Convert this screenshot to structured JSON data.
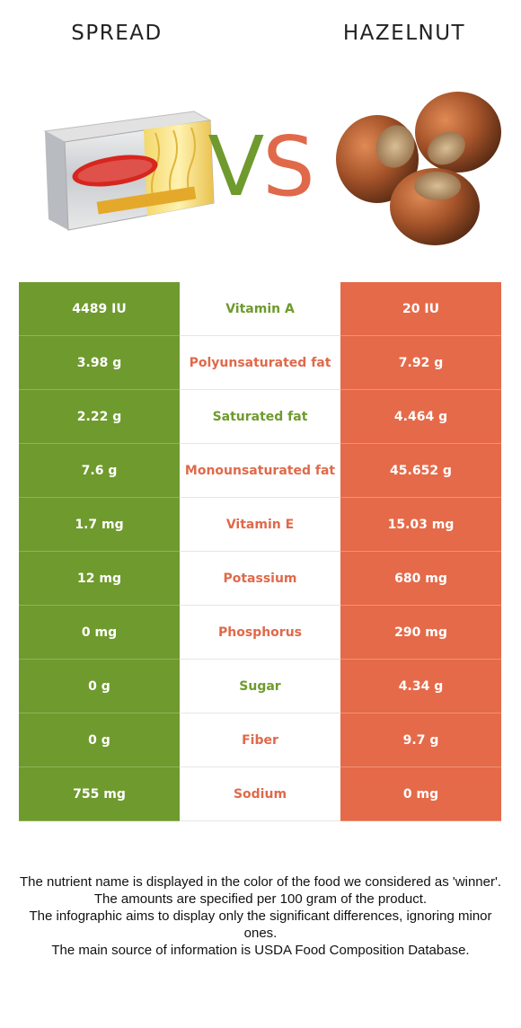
{
  "header": {
    "left_food": "SPREAD",
    "right_food": "HAZELNUT",
    "vs_v": "V",
    "vs_s": "S"
  },
  "colors": {
    "green": "#6f9a2e",
    "orange": "#e56a49"
  },
  "rows": [
    {
      "left": "4489 IU",
      "nutrient": "Vitamin A",
      "right": "20 IU",
      "winner": "left"
    },
    {
      "left": "3.98 g",
      "nutrient": "Polyunsaturated fat",
      "right": "7.92 g",
      "winner": "right"
    },
    {
      "left": "2.22 g",
      "nutrient": "Saturated fat",
      "right": "4.464 g",
      "winner": "left"
    },
    {
      "left": "7.6 g",
      "nutrient": "Monounsaturated fat",
      "right": "45.652 g",
      "winner": "right"
    },
    {
      "left": "1.7 mg",
      "nutrient": "Vitamin E",
      "right": "15.03 mg",
      "winner": "right"
    },
    {
      "left": "12 mg",
      "nutrient": "Potassium",
      "right": "680 mg",
      "winner": "right"
    },
    {
      "left": "0 mg",
      "nutrient": "Phosphorus",
      "right": "290 mg",
      "winner": "right"
    },
    {
      "left": "0 g",
      "nutrient": "Sugar",
      "right": "4.34 g",
      "winner": "left"
    },
    {
      "left": "0 g",
      "nutrient": "Fiber",
      "right": "9.7 g",
      "winner": "right"
    },
    {
      "left": "755 mg",
      "nutrient": "Sodium",
      "right": "0 mg",
      "winner": "right"
    }
  ],
  "footer": {
    "line1": "The nutrient name is displayed in the color of the food we considered as 'winner'.",
    "line2": "The amounts are specified per 100 gram of the product.",
    "line3": "The infographic aims to display only the significant differences, ignoring minor ones.",
    "line4": "The main source of information is USDA Food Composition Database."
  }
}
